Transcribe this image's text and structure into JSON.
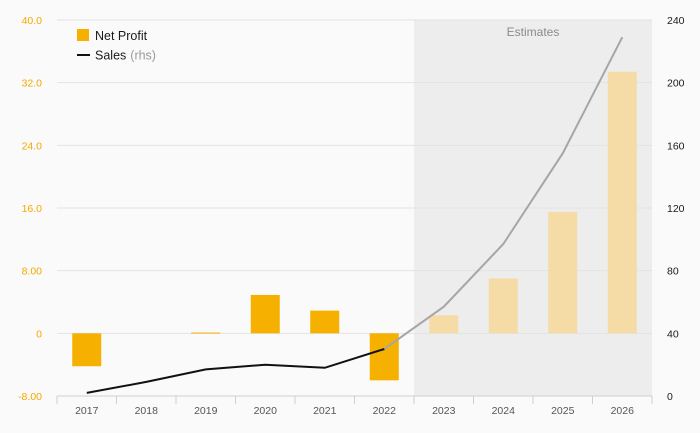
{
  "chart_data": {
    "type": "bar",
    "categories": [
      "2017",
      "2018",
      "2019",
      "2020",
      "2021",
      "2022",
      "2023",
      "2024",
      "2025",
      "2026"
    ],
    "estimate_start_index": 6,
    "estimates_label": "Estimates",
    "series": [
      {
        "name": "Net Profit",
        "type": "bar",
        "axis": "left",
        "color": "#f5b000",
        "estimate_color": "#f5dba6",
        "values": [
          -4.2,
          0.0,
          0.1,
          4.9,
          2.9,
          -6.0,
          2.3,
          7.0,
          15.5,
          33.4
        ]
      },
      {
        "name": "Sales",
        "name_suffix": "(rhs)",
        "type": "line",
        "axis": "right",
        "color": "#111111",
        "estimate_color": "#a6a6a6",
        "values": [
          2,
          9,
          17,
          20,
          18,
          30,
          57,
          97,
          155,
          229
        ]
      }
    ],
    "y_left": {
      "ylim": [
        -8,
        40
      ],
      "ticks": [
        -8,
        0,
        8,
        16,
        24,
        32,
        40
      ],
      "tick_labels": [
        "-8.00",
        "0",
        "8.00",
        "16.0",
        "24.0",
        "32.0",
        "40.0"
      ],
      "color": "#f5a800"
    },
    "y_right": {
      "ylim": [
        0,
        240
      ],
      "ticks": [
        0,
        40,
        80,
        120,
        160,
        200,
        240
      ],
      "tick_labels": [
        "0",
        "40",
        "80",
        "120",
        "160",
        "200",
        "240"
      ]
    },
    "grid": true,
    "legend_position": "top-left"
  }
}
